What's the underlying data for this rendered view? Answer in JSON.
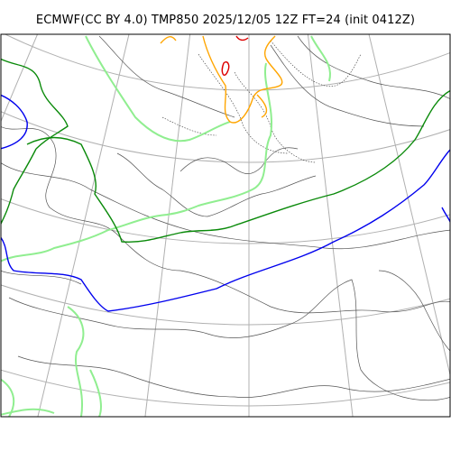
{
  "figure": {
    "title": "ECMWF(CC BY 4.0) TMP850 2025/12/05 12Z FT=24 (init 0412Z)"
  },
  "map": {
    "projection": "polar stereographic",
    "region": "East Asia / Japan",
    "variable": "850 hPa temperature",
    "colors": {
      "graticule": "#b0b0b0",
      "coastline": "#555555",
      "isotherm_minor": "#333333",
      "isotherm_negative": "#666666",
      "green": "#0a8a0a",
      "light_green": "#90ee90",
      "blue": "#0000ee",
      "orange": "#ffa500",
      "red": "#dd0000"
    }
  }
}
